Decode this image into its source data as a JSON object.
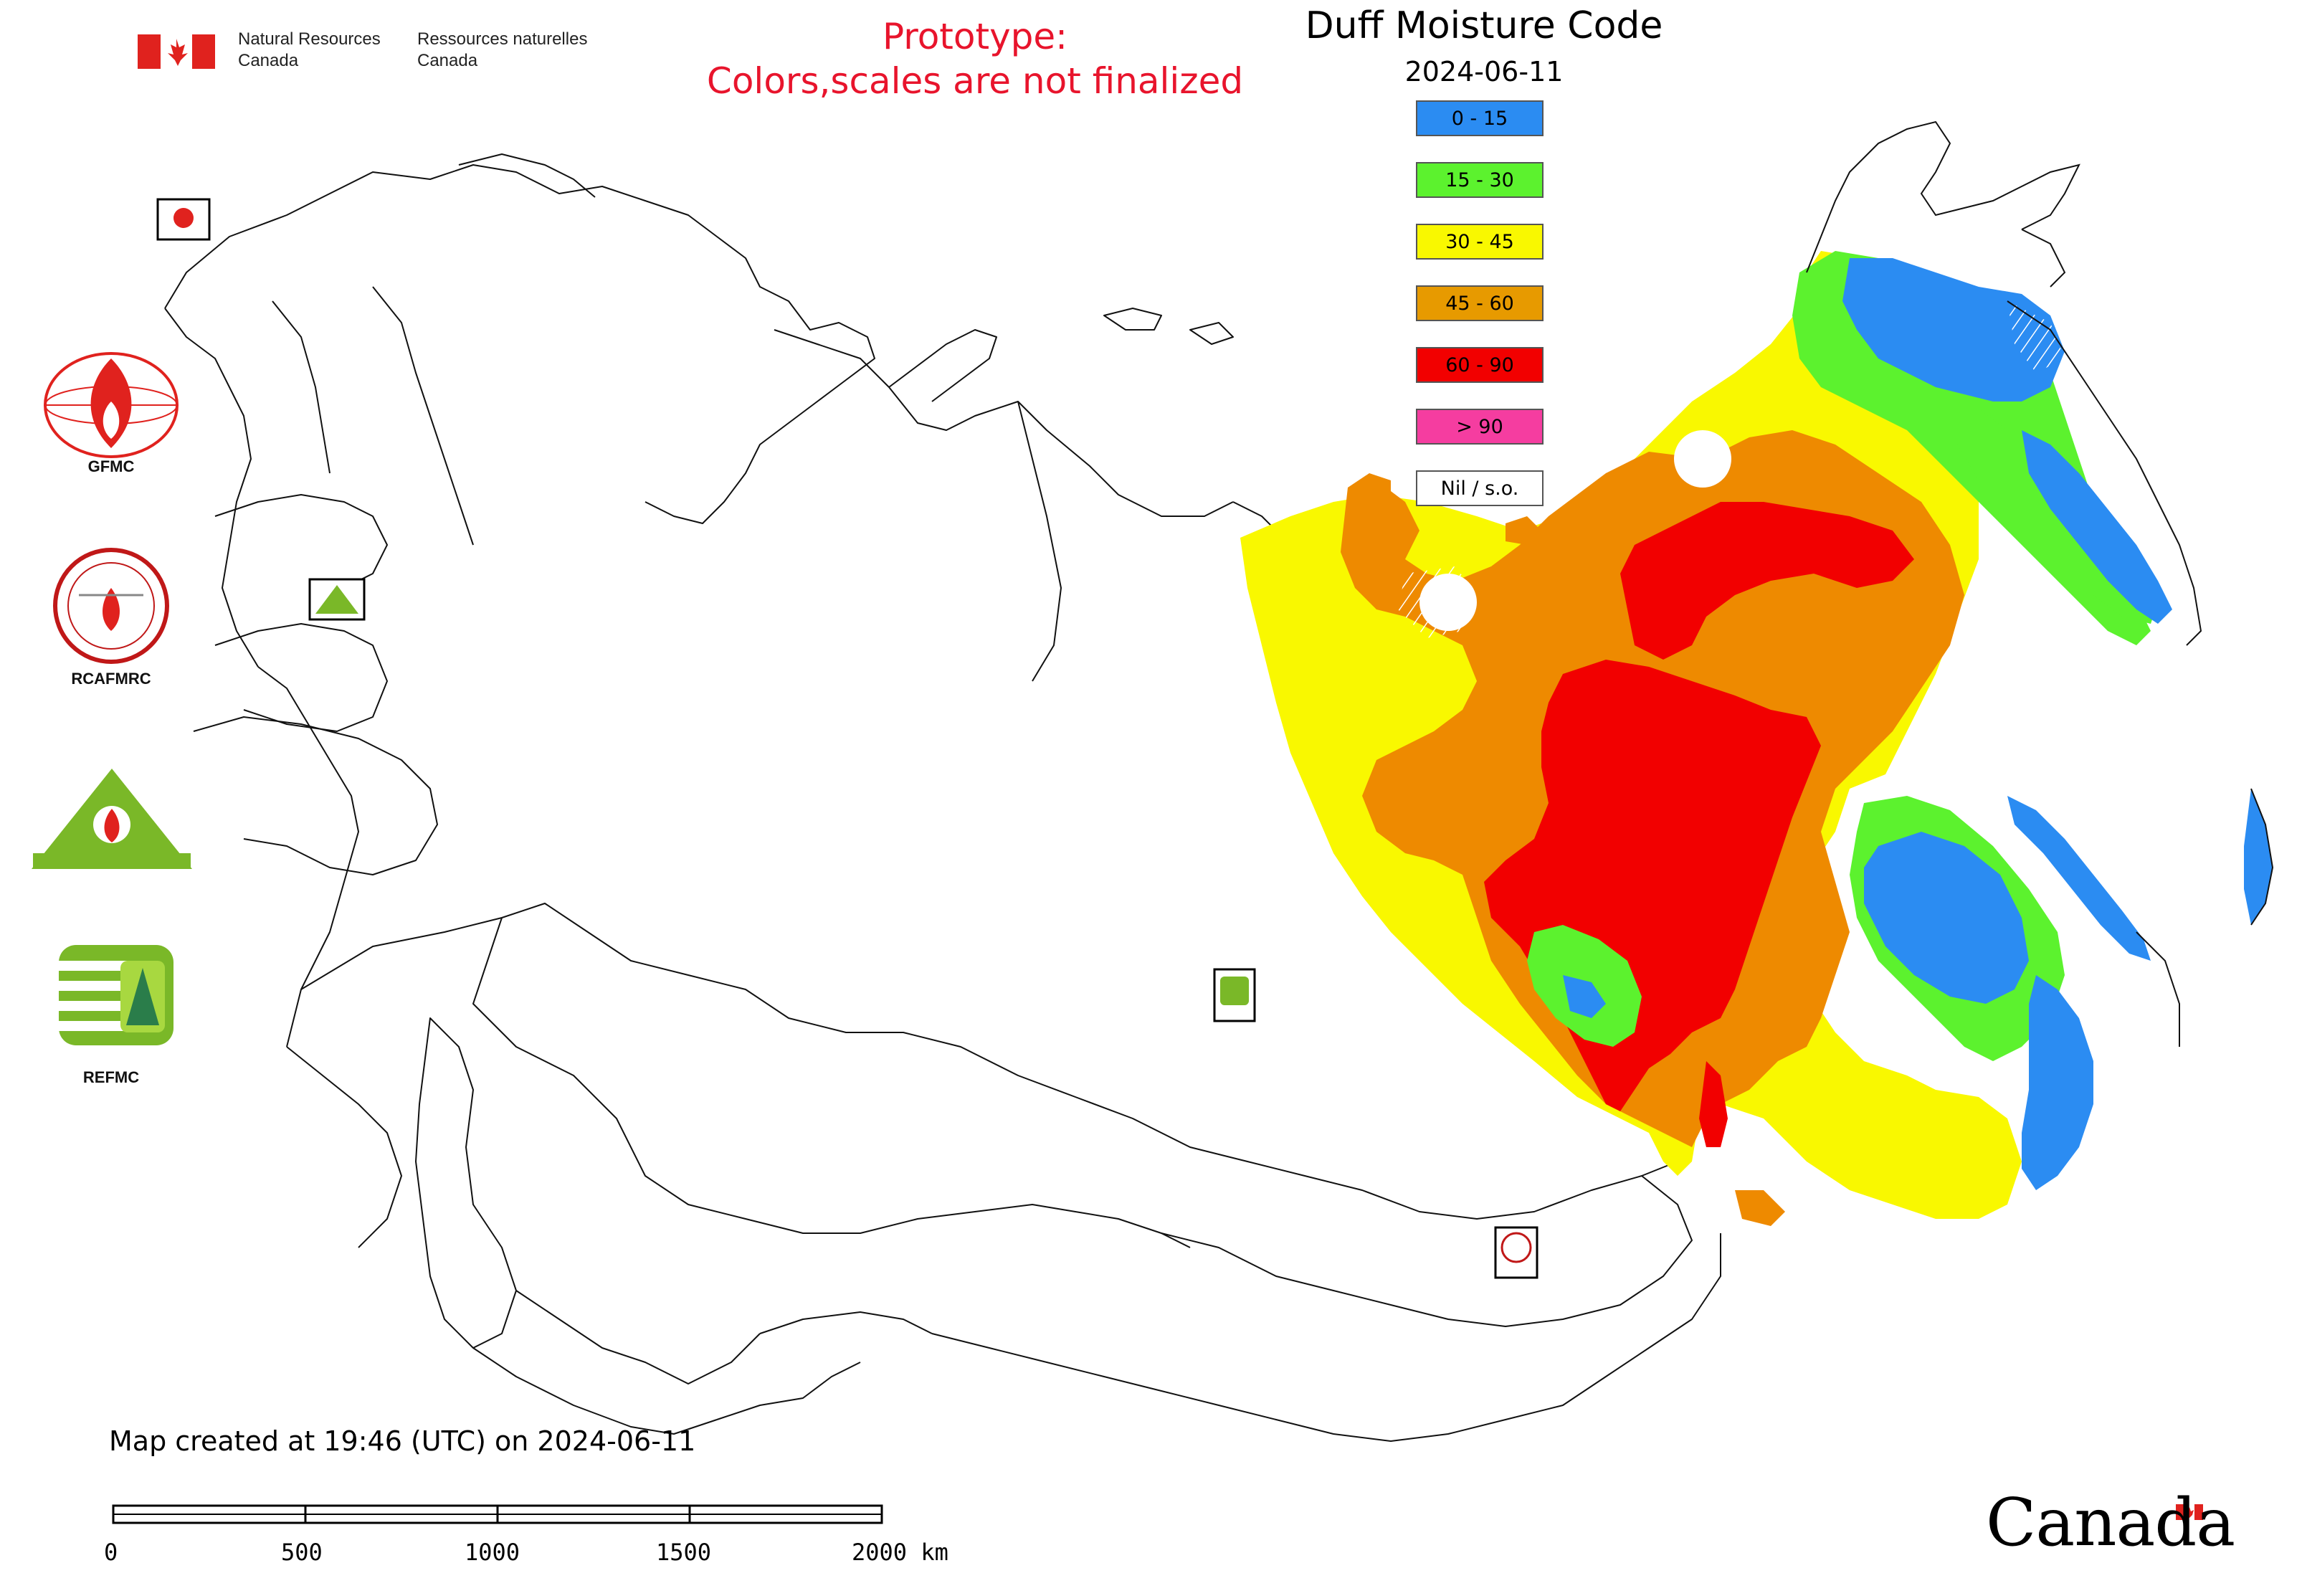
{
  "header": {
    "agency_en_line1": "Natural Resources",
    "agency_en_line2": "Canada",
    "agency_fr_line1": "Ressources naturelles",
    "agency_fr_line2": "Canada",
    "prototype_line1": "Prototype:",
    "prototype_line2": "Colors,scales are not finalized"
  },
  "map": {
    "title": "Duff Moisture Code",
    "date": "2024-06-11",
    "legend": [
      {
        "label": "0 - 15",
        "color": "#2b8cf2"
      },
      {
        "label": "15 - 30",
        "color": "#5cf22e"
      },
      {
        "label": "30 - 45",
        "color": "#f9f800"
      },
      {
        "label": "45 - 60",
        "color": "#e79a00"
      },
      {
        "label": "60 - 90",
        "color": "#f20000"
      },
      {
        "label": "> 90",
        "color": "#f53da0"
      },
      {
        "label": "Nil / s.o.",
        "color": "#ffffff"
      }
    ]
  },
  "logos": [
    {
      "label": "GFMC",
      "icon": "gfmc-globe-flame-icon"
    },
    {
      "label": "RCAFMRC",
      "icon": "rcafmrc-seal-icon"
    },
    {
      "label": "",
      "icon": "reefmc-triangle-icon"
    },
    {
      "label": "REFMC",
      "icon": "refmc-emblem-icon"
    }
  ],
  "footer": {
    "created": "Map created at 19:46 (UTC) on 2024-06-11",
    "scale_ticks": [
      "0",
      "500",
      "1000",
      "1500",
      "2000 km"
    ],
    "wordmark": "Canada"
  }
}
